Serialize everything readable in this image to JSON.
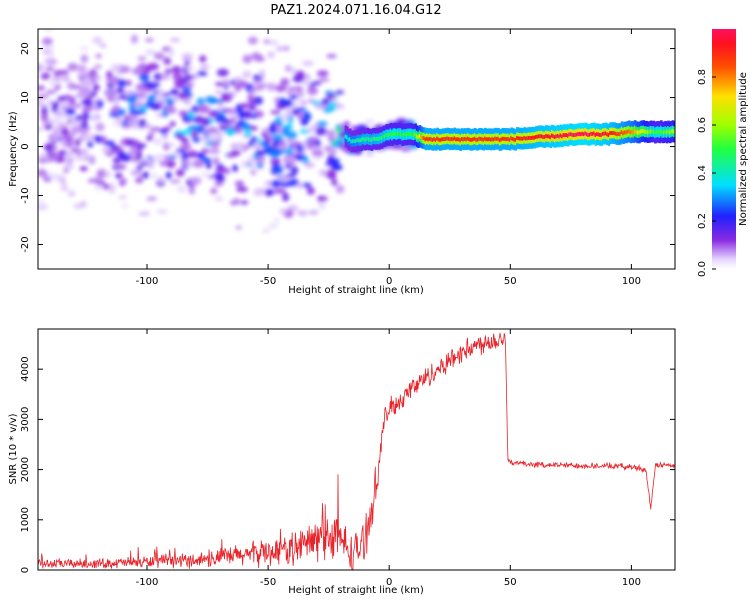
{
  "figure": {
    "title": "PAZ1.2024.071.16.04.G12"
  },
  "chart_data": [
    {
      "type": "heatmap",
      "xlabel": "Height of straight line (km)",
      "ylabel": "Frequency (Hz)",
      "xlim": [
        -145,
        118
      ],
      "ylim": [
        -25,
        24
      ],
      "xticks": [
        "-100",
        "-50",
        "0",
        "50",
        "100"
      ],
      "yticks": [
        "20",
        "10",
        "0",
        "-10",
        "-20"
      ],
      "colorbar": {
        "label": "Normalized spectral amplitude",
        "range": [
          0.0,
          1.0
        ],
        "ticks": [
          "0.0",
          "0.2",
          "0.4",
          "0.6",
          "0.8"
        ]
      },
      "ridge": {
        "description_points_x_km": [
          -140,
          -120,
          -100,
          -80,
          -60,
          -40,
          -25,
          -15,
          -10,
          -5,
          0,
          5,
          10,
          15,
          50,
          80,
          90,
          100,
          110,
          118
        ],
        "frequency_hz": [
          5,
          5,
          6,
          4,
          3,
          2,
          4,
          1,
          1.5,
          1.5,
          2.5,
          2.5,
          2.5,
          1.5,
          1.5,
          2.5,
          2.5,
          3,
          3,
          3
        ],
        "amplitude": [
          0.15,
          0.2,
          0.3,
          0.3,
          0.3,
          0.3,
          0.35,
          0.4,
          0.45,
          0.45,
          0.5,
          0.5,
          0.5,
          0.9,
          0.9,
          1.0,
          0.95,
          0.8,
          0.5,
          0.6
        ]
      },
      "grid": false
    },
    {
      "type": "line",
      "xlabel": "Height of straight line (km)",
      "ylabel": "SNR (10 * v/v)",
      "xlim": [
        -145,
        118
      ],
      "ylim": [
        0,
        4800
      ],
      "xticks": [
        "-100",
        "-50",
        "0",
        "50",
        "100"
      ],
      "yticks": [
        "0",
        "1000",
        "2000",
        "3000",
        "4000"
      ],
      "color": "#e8232a",
      "series": [
        {
          "x": [
            -145,
            -120,
            -100,
            -80,
            -60,
            -40,
            -30,
            -25,
            -20,
            -15,
            -10,
            -5,
            -2,
            0,
            5,
            10,
            20,
            30,
            40,
            48,
            49,
            50,
            60,
            80,
            100,
            106,
            108,
            110,
            118
          ],
          "y": [
            120,
            130,
            160,
            200,
            300,
            420,
            600,
            700,
            600,
            300,
            600,
            1800,
            3000,
            3200,
            3400,
            3650,
            4000,
            4350,
            4550,
            4620,
            2200,
            2140,
            2100,
            2080,
            2060,
            2000,
            1200,
            2100,
            2080
          ]
        }
      ],
      "grid": false
    }
  ]
}
